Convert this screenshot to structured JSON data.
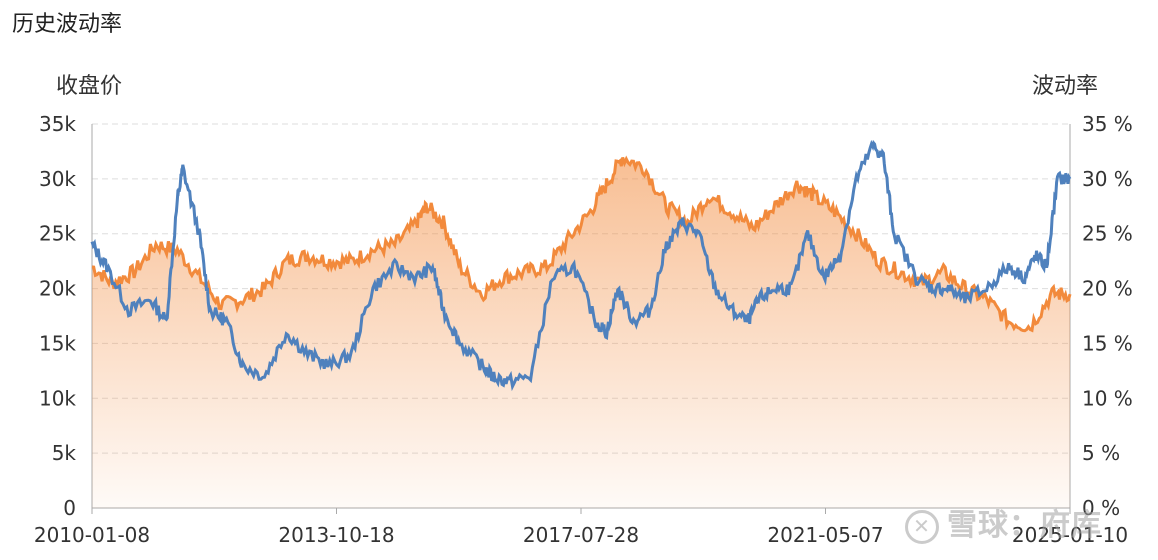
{
  "title": "历史波动率",
  "left_axis_title": "收盘价",
  "right_axis_title": "波动率",
  "watermark": "雪球：府库",
  "watermark_logo": "x-logo-icon",
  "colors": {
    "price": "#f28a3c",
    "volatility": "#4f81bd",
    "grid": "#dddddd",
    "axis": "#aaaaaa"
  },
  "chart_data": {
    "type": "area",
    "title": "",
    "x_tick_labels": [
      "2010-01-08",
      "2013-10-18",
      "2017-07-28",
      "2021-05-07",
      "2025-01-10"
    ],
    "x_range": [
      "2010-01-08",
      "2025-01-10"
    ],
    "y_left": {
      "label": "收盘价",
      "range": [
        0,
        35000
      ],
      "ticks": [
        "0",
        "5k",
        "10k",
        "15k",
        "20k",
        "25k",
        "30k",
        "35k"
      ]
    },
    "y_right": {
      "label": "波动率",
      "range": [
        0,
        35
      ],
      "ticks": [
        "0 %",
        "5 %",
        "10 %",
        "15 %",
        "20 %",
        "25 %",
        "30 %",
        "35 %"
      ]
    },
    "grid": true,
    "series": [
      {
        "name": "收盘价",
        "axis": "left",
        "style": "area",
        "x": [
          "2010-01-08",
          "2010-05-01",
          "2010-09-01",
          "2011-01-01",
          "2011-05-01",
          "2011-09-01",
          "2012-01-01",
          "2012-05-01",
          "2012-09-01",
          "2013-01-01",
          "2013-05-01",
          "2013-09-01",
          "2014-01-01",
          "2014-05-01",
          "2014-09-01",
          "2015-01-01",
          "2015-03-01",
          "2015-06-01",
          "2015-09-01",
          "2016-01-01",
          "2016-05-01",
          "2016-09-01",
          "2017-01-01",
          "2017-05-01",
          "2017-09-01",
          "2017-12-01",
          "2018-03-01",
          "2018-07-01",
          "2018-11-01",
          "2019-03-01",
          "2019-07-01",
          "2019-11-01",
          "2020-03-01",
          "2020-07-01",
          "2020-11-01",
          "2021-02-01",
          "2021-06-01",
          "2021-10-01",
          "2022-02-01",
          "2022-06-01",
          "2022-10-01",
          "2023-02-01",
          "2023-06-01",
          "2023-10-01",
          "2024-02-01",
          "2024-06-01",
          "2024-10-01",
          "2025-01-10"
        ],
        "values": [
          22000,
          20500,
          21500,
          24000,
          23500,
          21000,
          18500,
          19000,
          20000,
          22500,
          23000,
          22500,
          22500,
          23500,
          24000,
          26000,
          27500,
          26000,
          22000,
          19500,
          21000,
          21500,
          22000,
          24500,
          27000,
          29500,
          32000,
          31000,
          27500,
          26000,
          28500,
          27000,
          25500,
          27500,
          29500,
          28500,
          27000,
          25000,
          22500,
          21500,
          20500,
          21500,
          20000,
          19000,
          17000,
          16500,
          19500,
          19500
        ],
        "unit": "points"
      },
      {
        "name": "波动率",
        "axis": "right",
        "style": "line",
        "x": [
          "2010-01-08",
          "2010-04-01",
          "2010-08-01",
          "2010-12-01",
          "2011-03-01",
          "2011-05-01",
          "2011-06-01",
          "2011-09-01",
          "2011-11-01",
          "2012-02-01",
          "2012-05-01",
          "2012-09-01",
          "2013-01-01",
          "2013-05-01",
          "2013-09-01",
          "2014-01-01",
          "2014-05-01",
          "2014-09-01",
          "2015-01-01",
          "2015-04-01",
          "2015-06-01",
          "2015-09-01",
          "2016-01-01",
          "2016-03-01",
          "2016-06-01",
          "2016-10-01",
          "2017-02-01",
          "2017-06-01",
          "2017-10-01",
          "2017-12-01",
          "2018-02-01",
          "2018-05-01",
          "2018-08-01",
          "2018-11-01",
          "2019-02-01",
          "2019-05-01",
          "2019-08-01",
          "2019-11-01",
          "2020-02-01",
          "2020-04-01",
          "2020-07-01",
          "2020-10-01",
          "2021-01-01",
          "2021-04-01",
          "2021-07-01",
          "2021-10-01",
          "2022-01-01",
          "2022-03-01",
          "2022-05-01",
          "2022-09-01",
          "2022-12-01",
          "2023-03-01",
          "2023-06-01",
          "2023-10-01",
          "2024-02-01",
          "2024-05-01",
          "2024-07-01",
          "2024-09-01",
          "2024-11-01",
          "2025-01-10"
        ],
        "values": [
          24,
          22,
          18,
          19,
          17,
          28,
          31,
          25,
          18,
          17,
          13,
          12,
          16,
          14,
          13,
          14,
          20,
          22,
          21,
          22,
          18,
          15,
          13,
          12,
          11.5,
          12,
          21,
          22,
          17,
          16,
          20,
          17,
          18,
          24,
          26,
          25,
          20,
          18,
          17,
          19,
          20,
          20,
          25,
          21,
          23,
          30,
          33,
          32,
          25,
          21,
          20,
          20,
          19,
          20,
          22,
          21,
          23,
          22,
          30,
          30
        ],
        "unit": "%"
      }
    ]
  }
}
